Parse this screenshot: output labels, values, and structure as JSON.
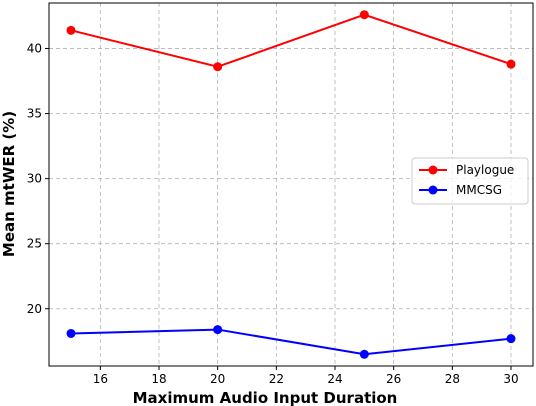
{
  "chart_data": {
    "type": "line",
    "xlabel": "Maximum Audio Input Duration",
    "ylabel": "Mean mtWER (%)",
    "x": [
      15,
      20,
      25,
      30
    ],
    "xlim": [
      14.25,
      30.75
    ],
    "ylim": [
      15.6,
      43.5
    ],
    "xticks": [
      16,
      18,
      20,
      22,
      24,
      26,
      28,
      30
    ],
    "yticks": [
      20,
      25,
      30,
      35,
      40
    ],
    "grid": true,
    "legend_position": "center-right",
    "series": [
      {
        "name": "Playlogue",
        "color": "#ff0000",
        "values": [
          41.4,
          38.6,
          42.6,
          38.8
        ]
      },
      {
        "name": "MMCSG",
        "color": "#0000ff",
        "values": [
          18.1,
          18.4,
          16.5,
          17.7
        ]
      }
    ]
  }
}
